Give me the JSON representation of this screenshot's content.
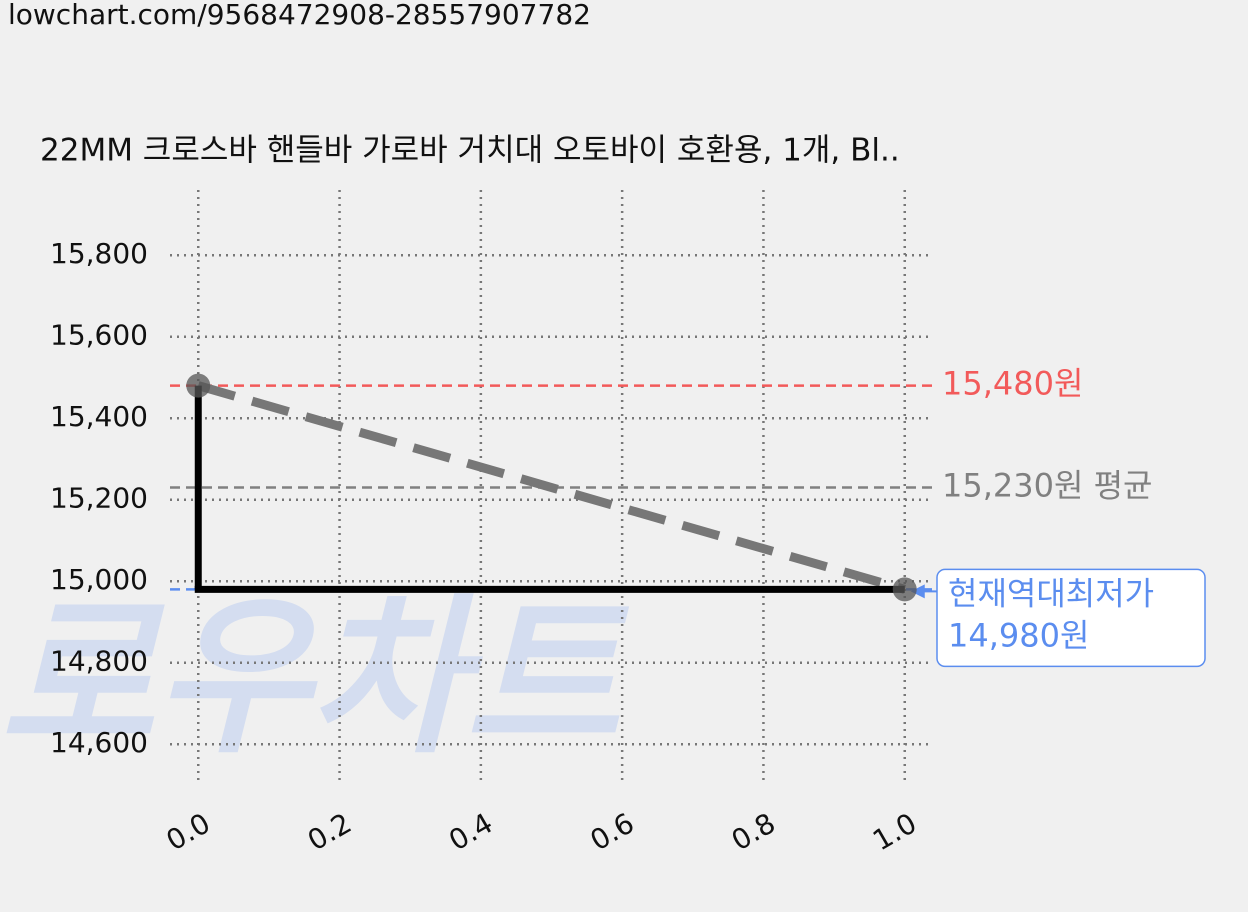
{
  "header": {
    "url": "lowchart.com/9568472908-28557907782"
  },
  "chart_data": {
    "type": "step-line",
    "title": "22MM 크로스바 핸들바 가로바 거치대 오토바이 호환용, 1개, Bl..",
    "watermark": "로우차트",
    "x": [
      0,
      1
    ],
    "series": [
      {
        "values": [
          15480,
          14980
        ],
        "color": "#000000",
        "trend_color": "#777777",
        "marker_color": "#555555"
      }
    ],
    "xlim": [
      -0.04,
      1.04
    ],
    "xticks": [
      {
        "value": 0,
        "label": "0.0"
      },
      {
        "value": 0.2,
        "label": "0.2"
      },
      {
        "value": 0.4,
        "label": "0.4"
      },
      {
        "value": 0.6,
        "label": "0.6"
      },
      {
        "value": 0.8,
        "label": "0.8"
      },
      {
        "value": 1,
        "label": "1.0"
      }
    ],
    "ylim": [
      14500,
      15960
    ],
    "yticks": [
      {
        "value": 14600,
        "label": "14,600"
      },
      {
        "value": 14800,
        "label": "14,800"
      },
      {
        "value": 15000,
        "label": "15,000"
      },
      {
        "value": 15200,
        "label": "15,200"
      },
      {
        "value": 15400,
        "label": "15,400"
      },
      {
        "value": 15600,
        "label": "15,600"
      },
      {
        "value": 15800,
        "label": "15,800"
      }
    ],
    "grid": true,
    "reference_lines": [
      {
        "value": 15480,
        "label": "15,480원",
        "color": "#f25a5a"
      },
      {
        "value": 15230,
        "label": "15,230원 평균",
        "color": "#808080"
      },
      {
        "value": 14980,
        "label": [
          "현재역대최저가",
          "14,980원"
        ],
        "color": "#5b8def"
      }
    ]
  }
}
